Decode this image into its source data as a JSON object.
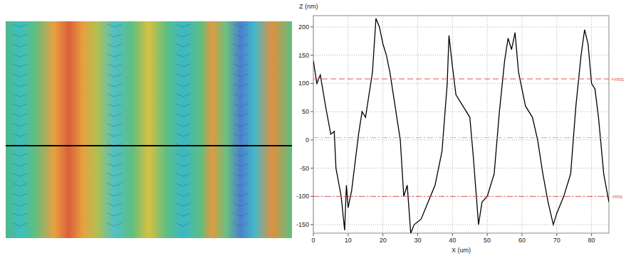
{
  "chart_data": {
    "type": "line",
    "x_label": "X (um)",
    "y_label": "Z (nm)",
    "xlim": [
      0,
      85
    ],
    "ylim": [
      -165,
      220
    ],
    "xticks": [
      0,
      10,
      20,
      30,
      40,
      50,
      60,
      70,
      80
    ],
    "yticks": [
      -150,
      -100,
      -50,
      0,
      50,
      100,
      150,
      200
    ],
    "grid": true,
    "series": [
      {
        "color": "#000000",
        "line_style": "solid",
        "x": [
          0,
          1,
          2,
          3.5,
          5,
          6,
          6.5,
          8,
          9,
          9.5,
          10,
          11,
          12,
          13,
          14,
          15,
          16,
          17,
          18,
          19,
          20,
          21,
          22,
          24,
          25,
          26,
          27,
          28,
          29,
          31,
          33,
          35,
          37,
          38.5,
          39,
          40,
          41,
          43,
          45,
          46,
          47.5,
          48.5,
          50,
          52,
          53.5,
          55,
          56,
          57,
          58,
          59,
          61,
          63,
          64.5,
          66,
          67.5,
          69,
          70,
          72,
          74,
          75.5,
          77,
          78,
          79,
          80,
          81,
          82,
          83.5,
          85
        ],
        "values": [
          140,
          100,
          115,
          60,
          10,
          15,
          -50,
          -100,
          -160,
          -80,
          -120,
          -90,
          -40,
          10,
          50,
          40,
          80,
          120,
          215,
          200,
          170,
          150,
          120,
          40,
          0,
          -100,
          -80,
          -165,
          -150,
          -140,
          -110,
          -80,
          -20,
          100,
          185,
          130,
          80,
          60,
          40,
          -30,
          -150,
          -110,
          -100,
          -60,
          50,
          140,
          180,
          160,
          190,
          120,
          60,
          40,
          0,
          -60,
          -110,
          -150,
          -130,
          -100,
          -60,
          60,
          150,
          195,
          170,
          100,
          90,
          40,
          -60,
          -110
        ]
      },
      {
        "name": "+rms",
        "color": "#e05a5a",
        "line_style": "dashed",
        "x": [
          0,
          85
        ],
        "values": [
          108,
          108
        ]
      },
      {
        "color": "#8ccf8c",
        "line_style": "dashdot",
        "x": [
          0,
          85
        ],
        "values": [
          4,
          4
        ]
      },
      {
        "name": "-rms",
        "color": "#e05a5a",
        "line_style": "dashdot",
        "x": [
          0,
          85
        ],
        "values": [
          -100,
          -100
        ]
      }
    ]
  }
}
